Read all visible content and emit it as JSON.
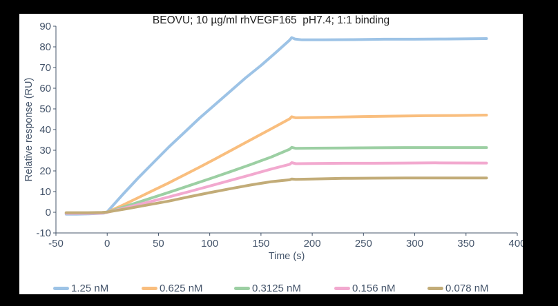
{
  "window": {
    "background_color": "#000000",
    "panel_color": "#ffffff"
  },
  "chart_data": {
    "type": "line",
    "title": "BEOVU; 10 µg/ml rhVEGF165  pH7.4; 1:1 binding",
    "xlabel": "Time (s)",
    "ylabel": "Relative response (RU)",
    "xlim": [
      -50,
      400
    ],
    "ylim": [
      -10,
      90
    ],
    "x_ticks": [
      -50,
      0,
      50,
      100,
      150,
      200,
      250,
      300,
      350,
      400
    ],
    "y_ticks": [
      -10,
      0,
      10,
      20,
      30,
      40,
      50,
      60,
      70,
      80,
      90
    ],
    "grid": false,
    "legend_position": "bottom",
    "axis_color": "#44546A",
    "tick_label_color": "#44546A",
    "title_color": "#1f1f1f",
    "line_width": 4,
    "series": [
      {
        "name": "1.25 nM",
        "color": "#9DC3E6",
        "points": [
          [
            -40,
            -0.9
          ],
          [
            -30,
            -0.9
          ],
          [
            -20,
            -0.8
          ],
          [
            -10,
            -0.6
          ],
          [
            -3,
            -0.4
          ],
          [
            0,
            0.2
          ],
          [
            15,
            8.5
          ],
          [
            30,
            16.5
          ],
          [
            45,
            24
          ],
          [
            60,
            31.5
          ],
          [
            75,
            38.5
          ],
          [
            90,
            45.5
          ],
          [
            105,
            52
          ],
          [
            120,
            58.5
          ],
          [
            135,
            65
          ],
          [
            150,
            71
          ],
          [
            165,
            77.5
          ],
          [
            178,
            83.3
          ],
          [
            180,
            84.5
          ],
          [
            183,
            83.8
          ],
          [
            190,
            83.4
          ],
          [
            210,
            83.4
          ],
          [
            240,
            83.5
          ],
          [
            270,
            83.7
          ],
          [
            300,
            83.7
          ],
          [
            330,
            83.8
          ],
          [
            370,
            84.0
          ]
        ]
      },
      {
        "name": "0.625 nM",
        "color": "#F9BE7E",
        "points": [
          [
            -40,
            -0.4
          ],
          [
            -20,
            -0.4
          ],
          [
            -5,
            -0.3
          ],
          [
            0,
            0
          ],
          [
            15,
            3.4
          ],
          [
            30,
            7
          ],
          [
            45,
            10.6
          ],
          [
            60,
            14.2
          ],
          [
            75,
            18
          ],
          [
            90,
            21.8
          ],
          [
            105,
            25.7
          ],
          [
            120,
            29.7
          ],
          [
            135,
            33.7
          ],
          [
            150,
            37.7
          ],
          [
            165,
            41.7
          ],
          [
            178,
            45.2
          ],
          [
            180,
            46.2
          ],
          [
            184,
            45.7
          ],
          [
            195,
            45.8
          ],
          [
            220,
            46.0
          ],
          [
            250,
            46.3
          ],
          [
            280,
            46.5
          ],
          [
            310,
            46.7
          ],
          [
            340,
            46.8
          ],
          [
            370,
            47.0
          ]
        ]
      },
      {
        "name": "0.3125 nM",
        "color": "#9CCFA3",
        "points": [
          [
            -40,
            -0.4
          ],
          [
            -20,
            -0.4
          ],
          [
            -5,
            -0.3
          ],
          [
            0,
            0
          ],
          [
            20,
            3.2
          ],
          [
            40,
            6.4
          ],
          [
            60,
            9.6
          ],
          [
            80,
            12.9
          ],
          [
            100,
            16.2
          ],
          [
            120,
            19.6
          ],
          [
            140,
            23.1
          ],
          [
            160,
            26.7
          ],
          [
            178,
            30.5
          ],
          [
            180,
            31.4
          ],
          [
            184,
            30.9
          ],
          [
            200,
            31.0
          ],
          [
            230,
            31.1
          ],
          [
            260,
            31.2
          ],
          [
            290,
            31.3
          ],
          [
            320,
            31.3
          ],
          [
            370,
            31.3
          ]
        ]
      },
      {
        "name": "0.156 nM",
        "color": "#F2A9CF",
        "points": [
          [
            -40,
            -0.5
          ],
          [
            -20,
            -0.5
          ],
          [
            -5,
            -0.4
          ],
          [
            0,
            0
          ],
          [
            20,
            2.4
          ],
          [
            40,
            4.9
          ],
          [
            60,
            7.4
          ],
          [
            80,
            10
          ],
          [
            100,
            12.7
          ],
          [
            120,
            15.4
          ],
          [
            140,
            18.1
          ],
          [
            160,
            20.9
          ],
          [
            178,
            23.2
          ],
          [
            180,
            24.0
          ],
          [
            184,
            23.5
          ],
          [
            200,
            23.6
          ],
          [
            230,
            23.7
          ],
          [
            260,
            23.7
          ],
          [
            290,
            23.8
          ],
          [
            320,
            23.9
          ],
          [
            370,
            23.8
          ]
        ]
      },
      {
        "name": "0.078 nM",
        "color": "#C2AC78",
        "points": [
          [
            -40,
            -0.2
          ],
          [
            -20,
            -0.2
          ],
          [
            -5,
            -0.1
          ],
          [
            0,
            0.1
          ],
          [
            20,
            1.8
          ],
          [
            40,
            3.6
          ],
          [
            60,
            5.4
          ],
          [
            80,
            7.5
          ],
          [
            100,
            9.5
          ],
          [
            120,
            11.4
          ],
          [
            140,
            13.2
          ],
          [
            160,
            14.8
          ],
          [
            178,
            15.7
          ],
          [
            180,
            16.1
          ],
          [
            184,
            15.9
          ],
          [
            200,
            16.1
          ],
          [
            230,
            16.4
          ],
          [
            260,
            16.5
          ],
          [
            290,
            16.6
          ],
          [
            320,
            16.6
          ],
          [
            370,
            16.6
          ]
        ]
      }
    ]
  }
}
